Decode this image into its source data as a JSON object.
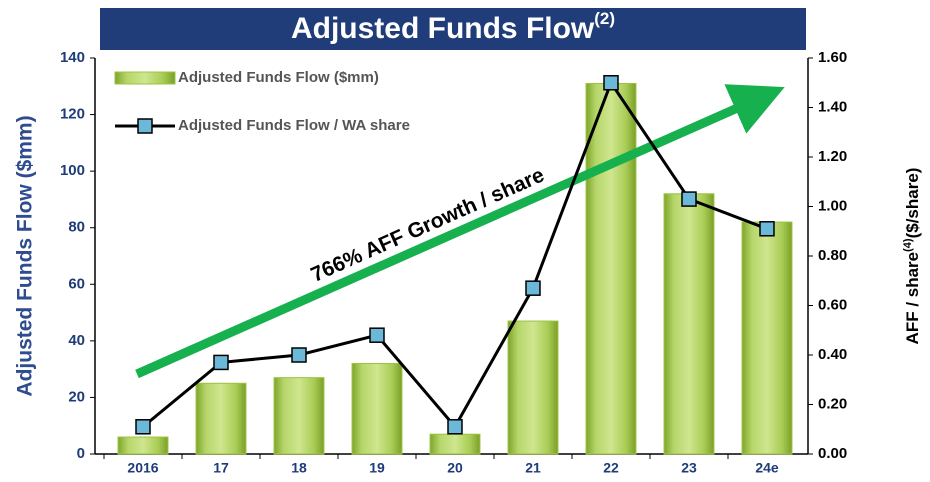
{
  "chart_data": {
    "type": "bar",
    "title": "Adjusted Funds Flow",
    "title_superscript": "(2)",
    "y_label": "Adjusted Funds Flow ($mm)",
    "y2_label": "AFF / share",
    "y2_label_superscript": "(4)",
    "y2_label_units": "($/share)",
    "annotation": "766% AFF Growth / share",
    "categories": [
      "2016",
      "17",
      "18",
      "19",
      "20",
      "21",
      "22",
      "23",
      "24e"
    ],
    "series": [
      {
        "name": "Adjusted Funds Flow ($mm)",
        "type": "bar",
        "color": "#9bc43f",
        "values": [
          6,
          25,
          27,
          32,
          7,
          47,
          131,
          92,
          82
        ]
      },
      {
        "name": "Adjusted Funds Flow / WA share",
        "type": "line",
        "axis": "y2",
        "color": "#000000",
        "marker_color": "#6cb8d8",
        "values": [
          0.11,
          0.37,
          0.4,
          0.48,
          0.11,
          0.67,
          1.5,
          1.03,
          0.91
        ]
      }
    ],
    "ylim": [
      0,
      140
    ],
    "yticks": [
      0,
      20,
      40,
      60,
      80,
      100,
      120,
      140
    ],
    "y2lim": [
      0,
      1.6
    ],
    "y2ticks": [
      {
        "value": 0,
        "label": "0.00"
      },
      {
        "value": 0.2,
        "label": "0.20"
      },
      {
        "value": 0.4,
        "label": "0.40"
      },
      {
        "value": 0.6,
        "label": "0.60"
      },
      {
        "value": 0.8,
        "label": "0.80"
      },
      {
        "value": 1.0,
        "label": "1.00"
      },
      {
        "value": 1.2,
        "label": "1.20"
      },
      {
        "value": 1.4,
        "label": "1.40"
      },
      {
        "value": 1.6,
        "label": "1.60"
      }
    ],
    "grid": false
  }
}
